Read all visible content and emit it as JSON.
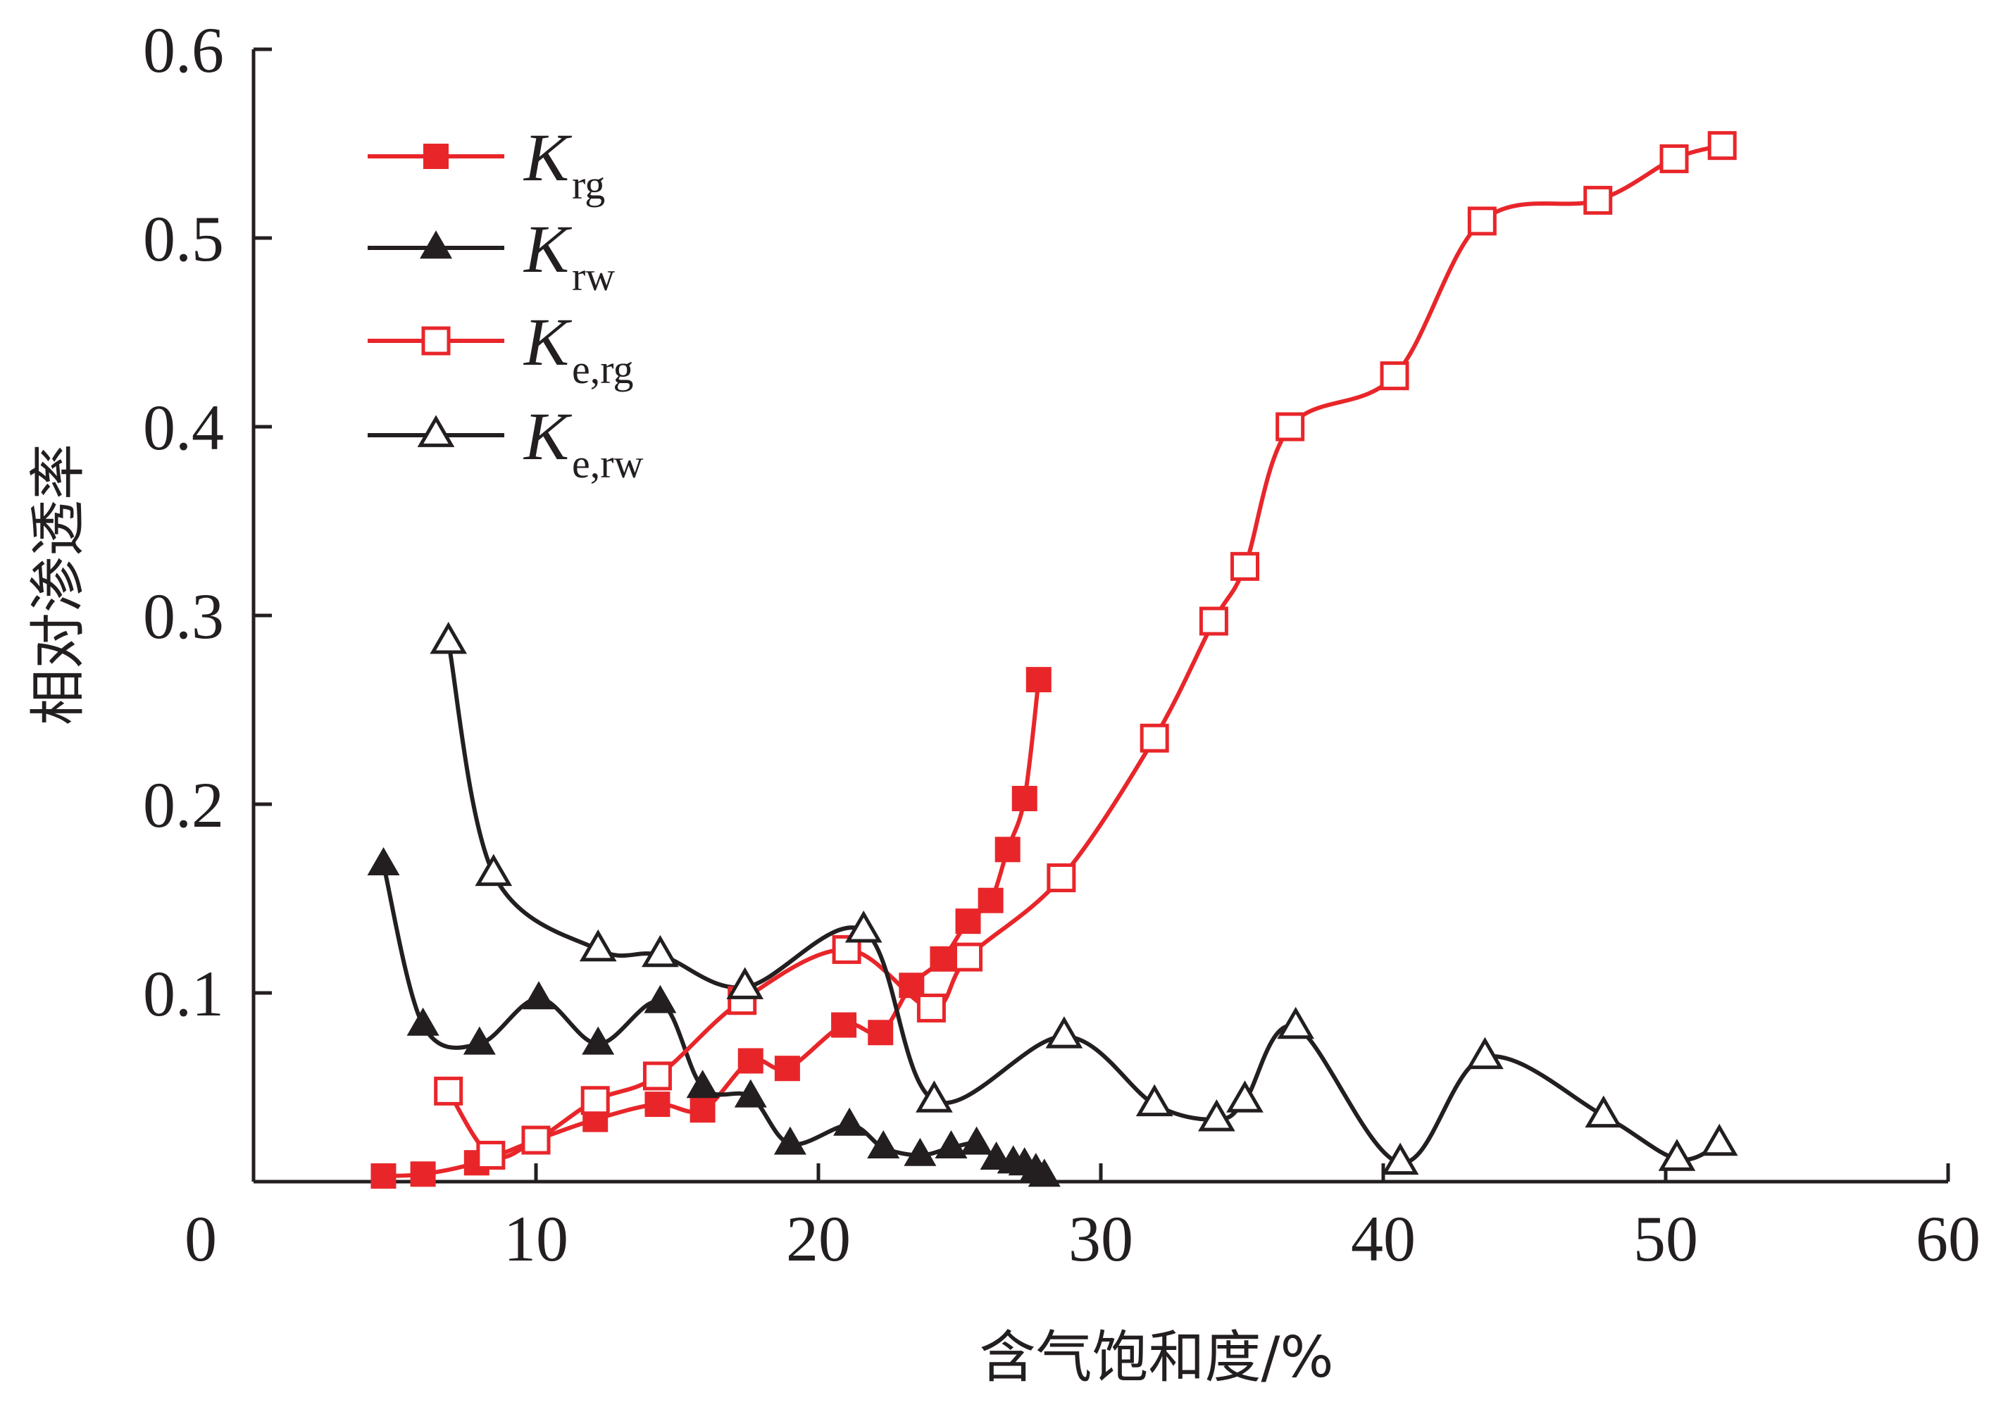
{
  "chart_data": {
    "type": "line",
    "xlabel": "含气饱和度/%",
    "ylabel": "相对渗透率",
    "xlim": [
      0,
      60
    ],
    "ylim": [
      0,
      0.6
    ],
    "x_ticks": [
      "0",
      "10",
      "20",
      "30",
      "40",
      "50",
      "60"
    ],
    "y_ticks": [
      "0.1",
      "0.2",
      "0.3",
      "0.4",
      "0.5",
      "0.6"
    ],
    "grid": false,
    "legend_position": "top-left",
    "series": [
      {
        "name": "Krg",
        "name_main": "K",
        "name_sub": "rg",
        "color": "#e8262a",
        "marker": "square-filled",
        "x": [
          4.6,
          6.0,
          7.9,
          10.0,
          12.1,
          14.3,
          15.9,
          17.6,
          18.9,
          20.9,
          22.2,
          23.3,
          24.4,
          25.3,
          26.1,
          26.7,
          27.3,
          27.8
        ],
        "y": [
          0.003,
          0.004,
          0.01,
          0.022,
          0.033,
          0.041,
          0.038,
          0.064,
          0.06,
          0.083,
          0.079,
          0.104,
          0.118,
          0.138,
          0.149,
          0.176,
          0.203,
          0.266
        ]
      },
      {
        "name": "Krw",
        "name_main": "K",
        "name_sub": "rw",
        "color": "#231f20",
        "marker": "triangle-filled",
        "x": [
          4.6,
          6.0,
          8.0,
          10.1,
          12.2,
          14.4,
          15.9,
          17.6,
          19.0,
          21.1,
          22.3,
          23.6,
          24.7,
          25.6,
          26.3,
          26.9,
          27.3,
          27.7,
          28.0
        ],
        "y": [
          0.168,
          0.083,
          0.073,
          0.097,
          0.073,
          0.095,
          0.05,
          0.045,
          0.02,
          0.03,
          0.018,
          0.014,
          0.018,
          0.02,
          0.012,
          0.01,
          0.009,
          0.006,
          0.003
        ]
      },
      {
        "name": "Ke,rg",
        "name_main": "K",
        "name_sub": "e,rg",
        "color": "#e8262a",
        "marker": "square-open",
        "x": [
          6.9,
          8.4,
          10.0,
          12.1,
          14.3,
          17.3,
          21.0,
          24.0,
          25.3,
          28.6,
          31.9,
          34.0,
          35.1,
          36.7,
          40.4,
          43.5,
          47.6,
          50.3,
          52.0
        ],
        "y": [
          0.048,
          0.014,
          0.022,
          0.043,
          0.056,
          0.096,
          0.123,
          0.092,
          0.119,
          0.161,
          0.235,
          0.297,
          0.326,
          0.4,
          0.427,
          0.509,
          0.52,
          0.542,
          0.549
        ]
      },
      {
        "name": "Ke,rw",
        "name_main": "K",
        "name_sub": "e,rw",
        "color": "#231f20",
        "marker": "triangle-open",
        "x": [
          6.9,
          8.5,
          12.2,
          14.4,
          17.4,
          21.6,
          24.1,
          28.7,
          31.9,
          34.1,
          35.1,
          36.9,
          40.6,
          43.6,
          47.8,
          50.4,
          51.9
        ],
        "y": [
          0.286,
          0.163,
          0.123,
          0.12,
          0.103,
          0.133,
          0.043,
          0.077,
          0.041,
          0.033,
          0.043,
          0.082,
          0.01,
          0.066,
          0.035,
          0.012,
          0.02
        ]
      }
    ]
  }
}
